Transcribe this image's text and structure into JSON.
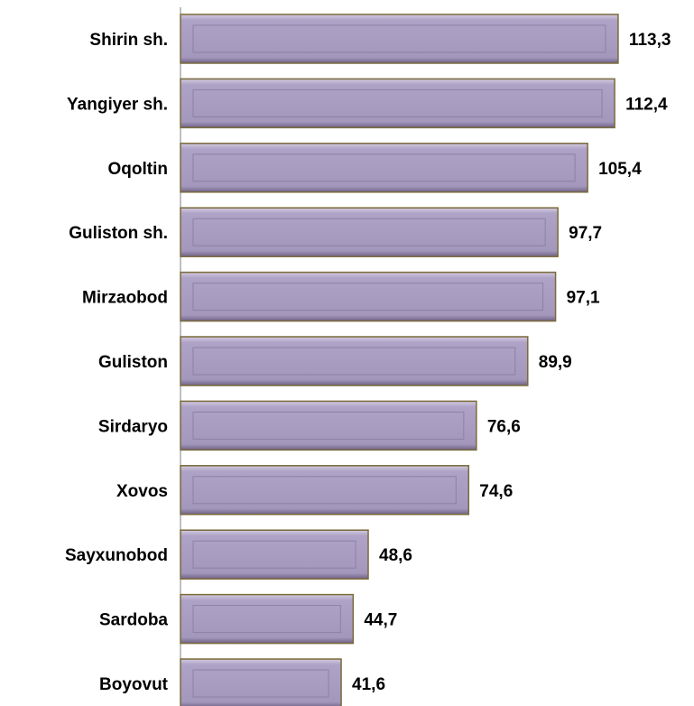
{
  "chart_data": {
    "type": "bar",
    "orientation": "horizontal",
    "categories": [
      "Shirin sh.",
      "Yangiyer sh.",
      "Oqoltin",
      "Guliston sh.",
      "Mirzaobod",
      "Guliston",
      "Sirdaryo",
      "Xovos",
      "Sayxunobod",
      "Sardoba",
      "Boyovut"
    ],
    "values": [
      113.3,
      112.4,
      105.4,
      97.7,
      97.1,
      89.9,
      76.6,
      74.6,
      48.6,
      44.7,
      41.6
    ],
    "value_labels": [
      "113,3",
      "112,4",
      "105,4",
      "97,7",
      "97,1",
      "89,9",
      "76,6",
      "74,6",
      "48,6",
      "44,7",
      "41,6"
    ],
    "color": "#a99dc1",
    "xlim": [
      0,
      120
    ]
  }
}
